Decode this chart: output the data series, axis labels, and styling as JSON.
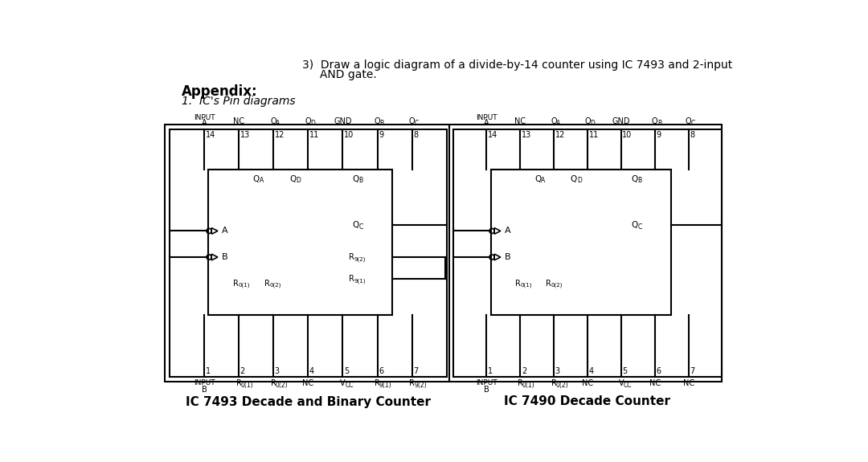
{
  "title_line1": "3)  Draw a logic diagram of a divide-by-14 counter using IC 7493 and 2-input",
  "title_line2": "     AND gate.",
  "appendix_text": "Appendix:",
  "section_text": "1.  IC's Pin diagrams",
  "bg_color": "#ffffff",
  "line_color": "#000000",
  "text_color": "#000000",
  "ic1_title": "IC 7493 Decade and Binary Counter",
  "ic2_title": "IC 7490 Decade Counter",
  "top_pins": [
    "14",
    "13",
    "12",
    "11",
    "10",
    "9",
    "8"
  ],
  "bot_pins_1": [
    "1",
    "2",
    "3",
    "4",
    "5",
    "6",
    "7"
  ],
  "bot_pins_2": [
    "1",
    "2",
    "3",
    "4",
    "5",
    "6",
    "7"
  ],
  "top_sig_labels": [
    "INPUT A",
    "NC",
    "QA",
    "QD",
    "GND",
    "QB",
    "QC"
  ],
  "bot_sig_labels_1": [
    "INPUT B",
    "R0(1)",
    "R0(2)",
    "NC",
    "VCC",
    "R9(1)",
    "R9(2)"
  ],
  "bot_sig_labels_2": [
    "INPUT B",
    "R0(1)",
    "R0(2)",
    "NC",
    "VCC",
    "NC",
    "NC"
  ]
}
